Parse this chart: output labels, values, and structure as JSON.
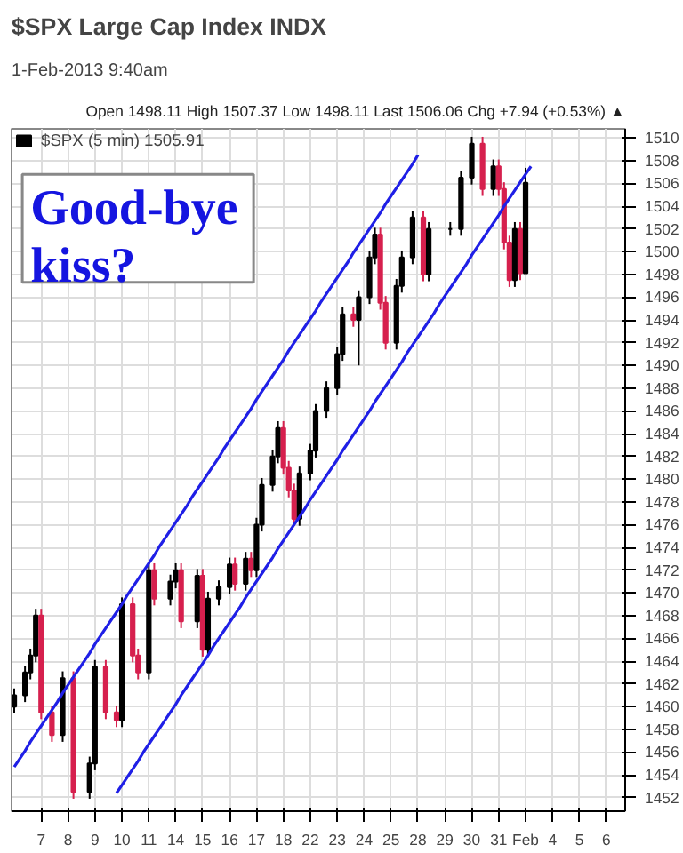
{
  "chart_data": {
    "type": "candlestick",
    "title": "$SPX Large Cap Index INDX",
    "subtitle": "1-Feb-2013 9:40am",
    "annotations": [
      "Open 1498.11 High 1507.37 Low 1498.11 Last 1506.06 Chg +7.94 (+0.53%) ▲",
      "Good-bye kiss?"
    ],
    "categories": [
      null,
      null,
      null,
      null,
      null,
      "7",
      null,
      null,
      null,
      null,
      "8",
      null,
      null,
      null,
      null,
      "9",
      null,
      null,
      null,
      null,
      "10",
      null,
      null,
      null,
      null,
      "11",
      null,
      null,
      null,
      null,
      "14",
      null,
      null,
      null,
      null,
      "15",
      null,
      null,
      null,
      null,
      "16",
      null,
      null,
      null,
      null,
      "17",
      null,
      null,
      null,
      null,
      "18",
      null,
      null,
      null,
      null,
      "22",
      null,
      null,
      null,
      null,
      "23",
      null,
      null,
      null,
      null,
      "24",
      null,
      null,
      null,
      null,
      "25",
      null,
      null,
      null,
      null,
      "28",
      null,
      null,
      null,
      null,
      "29",
      null,
      null,
      null,
      null,
      "30",
      null,
      null,
      null,
      null,
      "31",
      null,
      null,
      null,
      null,
      "Feb",
      null,
      null,
      null,
      null,
      "4",
      null,
      null,
      null,
      null,
      "5",
      null,
      null,
      null,
      null,
      "6",
      null,
      null,
      null
    ],
    "ylim": [
      1450.8,
      1510.8
    ],
    "yticks": [
      1452,
      1454,
      1456,
      1458,
      1460,
      1462,
      1464,
      1466,
      1468,
      1470,
      1472,
      1474,
      1476,
      1478,
      1480,
      1482,
      1484,
      1486,
      1488,
      1490,
      1492,
      1494,
      1496,
      1498,
      1500,
      1502,
      1504,
      1506,
      1508,
      1510
    ],
    "grid": true,
    "legend": "top left",
    "series": [
      {
        "name": "$SPX (5 min) 1505.91",
        "ohlc": [
          [
            1460,
            1461.6,
            1459.4,
            1461
          ],
          null,
          [
            1461,
            1463.6,
            1460.4,
            1463
          ],
          [
            1463,
            1465.1,
            1462.4,
            1464.5
          ],
          [
            1464.5,
            1468.6,
            1463.9,
            1468
          ],
          [
            1468,
            1468.6,
            1458.9,
            1459.5
          ],
          null,
          [
            1459.5,
            1460.1,
            1456.9,
            1457.5
          ],
          null,
          [
            1457.5,
            1463.1,
            1456.9,
            1462.5
          ],
          null,
          [
            1462.5,
            1463.1,
            1451.9,
            1452.5
          ],
          null,
          null,
          [
            1452.5,
            1455.6,
            1451.9,
            1455
          ],
          [
            1455,
            1464.1,
            1454.4,
            1463.5
          ],
          null,
          [
            1463.5,
            1464.1,
            1458.9,
            1459.5
          ],
          null,
          [
            1459.5,
            1460.1,
            1458.2,
            1458.8
          ],
          [
            1458.8,
            1469.6,
            1458.2,
            1469
          ],
          null,
          [
            1469,
            1469.6,
            1463.9,
            1464.5
          ],
          [
            1464.5,
            1465.1,
            1462.4,
            1463
          ],
          null,
          [
            1463,
            1472.6,
            1462.4,
            1472
          ],
          [
            1472,
            1472.6,
            1468.9,
            1469.5
          ],
          null,
          null,
          [
            1469.5,
            1471.6,
            1468.9,
            1471
          ],
          [
            1471,
            1472.6,
            1470.4,
            1472
          ],
          [
            1472,
            1472.6,
            1466.9,
            1467.5
          ],
          null,
          null,
          [
            1467.5,
            1472.1,
            1466.9,
            1471.5
          ],
          [
            1471.5,
            1472.1,
            1464.4,
            1465
          ],
          [
            1465,
            1470.1,
            1464.4,
            1469.5
          ],
          null,
          [
            1469.5,
            1471.1,
            1468.9,
            1470.5
          ],
          null,
          [
            1470.5,
            1473.1,
            1469.9,
            1472.5
          ],
          [
            1472.5,
            1473.1,
            1470.2,
            1470.8
          ],
          null,
          [
            1470.8,
            1473.6,
            1470.2,
            1473
          ],
          [
            1473,
            1473.6,
            1471.4,
            1472
          ],
          [
            1472,
            1476.6,
            1471.4,
            1476
          ],
          [
            1476,
            1480.1,
            1475.4,
            1479.5
          ],
          null,
          [
            1479.5,
            1482.6,
            1478.9,
            1482
          ],
          [
            1482,
            1485.1,
            1481.4,
            1484.5
          ],
          [
            1484.5,
            1485.1,
            1480.4,
            1481
          ],
          [
            1481,
            1481.6,
            1478.4,
            1479
          ],
          [
            1479,
            1479.6,
            1475.9,
            1476.5
          ],
          [
            1476.5,
            1481.1,
            1475.9,
            1480.5
          ],
          null,
          [
            1480.5,
            1483.1,
            1479.9,
            1482.5
          ],
          [
            1482.5,
            1486.6,
            1481.9,
            1486
          ],
          null,
          [
            1486,
            1488.6,
            1485.4,
            1488
          ],
          null,
          [
            1488,
            1491.6,
            1487.4,
            1491
          ],
          [
            1491,
            1495.1,
            1490.4,
            1494.5
          ],
          null,
          [
            1494.5,
            1495.1,
            1493.4,
            1494
          ],
          [
            1494,
            1496.6,
            1490,
            1496
          ],
          null,
          [
            1496,
            1500.1,
            1495.4,
            1499.5
          ],
          [
            1499.5,
            1502.1,
            1498.9,
            1501.5
          ],
          [
            1501.5,
            1502.1,
            1494.9,
            1495.5
          ],
          [
            1495.5,
            1496.1,
            1491.4,
            1492
          ],
          null,
          [
            1492,
            1497.6,
            1491.4,
            1497
          ],
          [
            1497,
            1500.1,
            1496.4,
            1499.5
          ],
          null,
          [
            1499.5,
            1503.6,
            1498.9,
            1503
          ],
          null,
          [
            1503,
            1503.6,
            1497.4,
            1498
          ],
          [
            1498,
            1502.6,
            1497.4,
            1502
          ],
          null,
          null,
          null,
          [
            1502,
            1502.6,
            1501.4,
            1502
          ],
          null,
          [
            1502,
            1507.1,
            1501.4,
            1506.5
          ],
          null,
          [
            1506.5,
            1510.1,
            1505.9,
            1509.5
          ],
          null,
          [
            1509.5,
            1510.1,
            1504.9,
            1505.5
          ],
          null,
          [
            1505.5,
            1508.1,
            1504.9,
            1507.5
          ],
          [
            1507.5,
            1508.1,
            1504.9,
            1505.5
          ],
          [
            1505.5,
            1506.1,
            1500.2,
            1500.8
          ],
          [
            1500.8,
            1501.4,
            1496.9,
            1497.5
          ],
          [
            1497.5,
            1502.6,
            1496.9,
            1502
          ],
          [
            1502,
            1502.6,
            1497.5,
            1498.1
          ],
          [
            1498.11,
            1507.37,
            1498.11,
            1506.06
          ],
          null,
          null,
          null,
          null,
          null,
          null,
          null,
          null,
          null,
          null,
          null,
          null,
          null,
          null,
          null,
          null,
          null,
          null
        ],
        "colors": [
          "#000000",
          null,
          "#000000",
          "#000000",
          "#000000",
          "#d6204e",
          null,
          "#d6204e",
          null,
          "#000000",
          null,
          "#d6204e",
          null,
          null,
          "#000000",
          "#000000",
          null,
          "#d6204e",
          null,
          "#d6204e",
          "#000000",
          null,
          "#d6204e",
          "#d6204e",
          null,
          "#000000",
          "#d6204e",
          null,
          null,
          "#000000",
          "#000000",
          "#d6204e",
          null,
          null,
          "#000000",
          "#d6204e",
          "#000000",
          null,
          "#000000",
          null,
          "#000000",
          "#d6204e",
          null,
          "#000000",
          "#d6204e",
          "#000000",
          "#000000",
          null,
          "#000000",
          "#000000",
          "#d6204e",
          "#d6204e",
          "#d6204e",
          "#000000",
          null,
          "#000000",
          "#000000",
          null,
          "#000000",
          null,
          "#000000",
          "#000000",
          null,
          "#d6204e",
          "#000000",
          null,
          "#000000",
          "#000000",
          "#d6204e",
          "#d6204e",
          null,
          "#000000",
          "#000000",
          null,
          "#000000",
          null,
          "#d6204e",
          "#000000",
          null,
          null,
          null,
          "#000000",
          null,
          "#000000",
          null,
          "#000000",
          null,
          "#d6204e",
          null,
          "#000000",
          "#d6204e",
          "#d6204e",
          "#d6204e",
          "#000000",
          "#d6204e",
          "#000000",
          null,
          null,
          null,
          null,
          null,
          null,
          null,
          null,
          null,
          null,
          null,
          null,
          null,
          null,
          null,
          null,
          null,
          null
        ]
      },
      {
        "type": "line",
        "color": "#1f1fe6",
        "values": [
          1454.7,
          1455.4,
          1456.1,
          1456.9,
          1457.6,
          1458.3,
          1459.0,
          1459.7,
          1460.4,
          1461.2,
          1461.9,
          1462.6,
          1463.3,
          1464.0,
          1464.7,
          1465.5,
          1466.2,
          1466.9,
          1467.6,
          1468.3,
          1469.0,
          1469.8,
          1470.5,
          1471.2,
          1471.9,
          1472.6,
          1473.3,
          1474.1,
          1474.8,
          1475.5,
          1476.2,
          1476.9,
          1477.6,
          1478.4,
          1479.1,
          1479.8,
          1480.5,
          1481.2,
          1481.9,
          1482.7,
          1483.4,
          1484.1,
          1484.8,
          1485.5,
          1486.2,
          1487.0,
          1487.7,
          1488.4,
          1489.1,
          1489.8,
          1490.5,
          1491.3,
          1492.0,
          1492.7,
          1493.4,
          1494.1,
          1494.8,
          1495.6,
          1496.3,
          1497.0,
          1497.7,
          1498.4,
          1499.1,
          1499.9,
          1500.6,
          1501.3,
          1502.0,
          1502.7,
          1503.4,
          1504.2,
          1504.9,
          1505.6,
          1506.3,
          1507.0,
          1507.7,
          1508.5,
          null,
          null,
          null,
          null,
          null,
          null,
          null,
          null,
          null,
          null,
          null,
          null,
          null,
          null,
          null,
          null,
          null,
          null,
          null,
          null,
          null,
          null,
          null,
          null,
          null,
          null,
          null,
          null,
          null,
          null,
          null,
          null,
          null,
          null,
          null,
          null,
          null,
          null
        ]
      },
      {
        "type": "line",
        "color": "#1f1fe6",
        "values": [
          null,
          null,
          null,
          null,
          null,
          null,
          null,
          null,
          null,
          null,
          null,
          null,
          null,
          null,
          null,
          null,
          null,
          null,
          null,
          1452.4,
          1453.1,
          1453.8,
          1454.5,
          1455.2,
          1456.0,
          1456.7,
          1457.4,
          1458.1,
          1458.8,
          1459.5,
          1460.2,
          1461.0,
          1461.7,
          1462.4,
          1463.1,
          1463.8,
          1464.5,
          1465.3,
          1466.0,
          1466.7,
          1467.4,
          1468.1,
          1468.8,
          1469.6,
          1470.3,
          1471.0,
          1471.7,
          1472.4,
          1473.1,
          1473.9,
          1474.6,
          1475.3,
          1476.0,
          1476.7,
          1477.4,
          1478.2,
          1478.9,
          1479.6,
          1480.3,
          1481.0,
          1481.7,
          1482.5,
          1483.2,
          1483.9,
          1484.6,
          1485.3,
          1486.0,
          1486.8,
          1487.5,
          1488.2,
          1488.9,
          1489.6,
          1490.3,
          1491.1,
          1491.8,
          1492.5,
          1493.2,
          1493.9,
          1494.6,
          1495.4,
          1496.1,
          1496.8,
          1497.5,
          1498.2,
          1498.9,
          1499.7,
          1500.4,
          1501.1,
          1501.8,
          1502.5,
          1503.2,
          1504.0,
          1504.7,
          1505.4,
          1506.1,
          1506.8,
          1507.5,
          null,
          null,
          null,
          null,
          null,
          null,
          null,
          null,
          null,
          null,
          null,
          null,
          null,
          null,
          null,
          null,
          null
        ]
      }
    ]
  }
}
